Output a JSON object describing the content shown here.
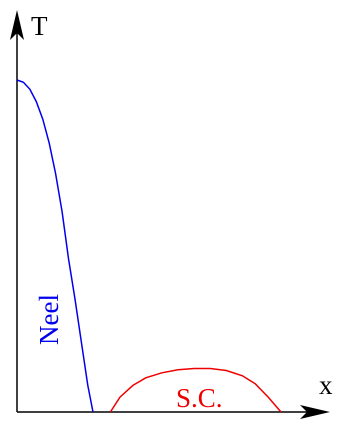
{
  "chart_data": {
    "type": "line",
    "title": "",
    "xlabel": "x",
    "ylabel": "T",
    "xlim": [
      0,
      1
    ],
    "ylim": [
      0,
      1
    ],
    "grid": false,
    "series": [
      {
        "name": "Neel",
        "color": "#0000ee",
        "x": [
          0.0,
          0.02,
          0.04,
          0.06,
          0.08,
          0.1,
          0.12,
          0.14,
          0.16,
          0.18,
          0.2,
          0.22,
          0.236
        ],
        "y": [
          1.0,
          0.993,
          0.972,
          0.935,
          0.882,
          0.81,
          0.718,
          0.603,
          0.462,
          0.34,
          0.21,
          0.08,
          0.0
        ]
      },
      {
        "name": "S.C.",
        "color": "#ee0000",
        "x": [
          0.29,
          0.32,
          0.36,
          0.4,
          0.45,
          0.5,
          0.55,
          0.6,
          0.65,
          0.7,
          0.74,
          0.78,
          0.82
        ],
        "y": [
          0.0,
          0.045,
          0.08,
          0.103,
          0.118,
          0.127,
          0.131,
          0.131,
          0.125,
          0.109,
          0.085,
          0.045,
          0.0
        ]
      }
    ]
  }
}
